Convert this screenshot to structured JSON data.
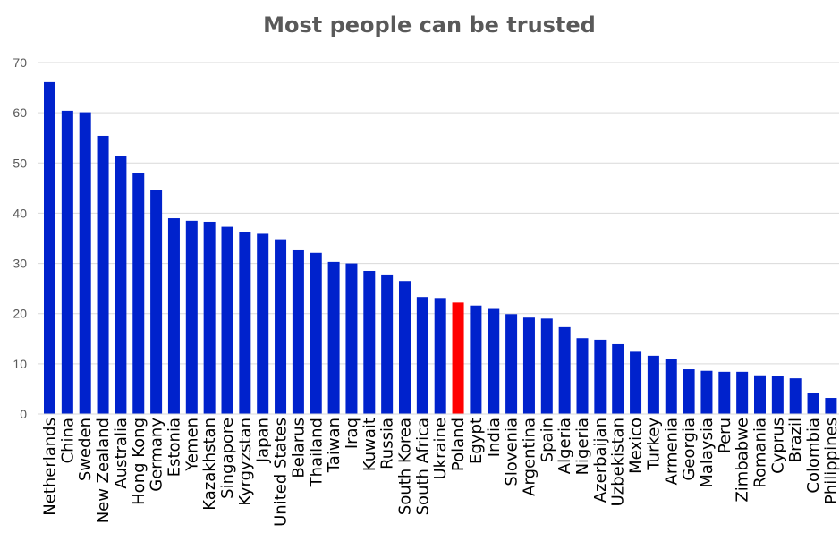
{
  "chart_data": {
    "type": "bar",
    "title": "Most people can be trusted",
    "xlabel": "",
    "ylabel": "",
    "ylim": [
      0,
      70
    ],
    "yticks": [
      0,
      10,
      20,
      30,
      40,
      50,
      60,
      70
    ],
    "grid": true,
    "legend": "none",
    "default_color": "#0022CC",
    "highlight_color": "#FF0000",
    "highlight_category": "Poland",
    "categories": [
      "Netherlands",
      "China",
      "Sweden",
      "New Zealand",
      "Australia",
      "Hong Kong",
      "Germany",
      "Estonia",
      "Yemen",
      "Kazakhstan",
      "Singapore",
      "Kyrgyzstan",
      "Japan",
      "United States",
      "Belarus",
      "Thailand",
      "Taiwan",
      "Iraq",
      "Kuwait",
      "Russia",
      "South Korea",
      "South Africa",
      "Ukraine",
      "Poland",
      "Egypt",
      "India",
      "Slovenia",
      "Argentina",
      "Spain",
      "Algeria",
      "Nigeria",
      "Azerbaijan",
      "Uzbekistan",
      "Mexico",
      "Turkey",
      "Armenia",
      "Georgia",
      "Malaysia",
      "Peru",
      "Zimbabwe",
      "Romania",
      "Cyprus",
      "Brazil",
      "Colombia",
      "Philippines"
    ],
    "values": [
      66.1,
      60.4,
      60.1,
      55.4,
      51.3,
      48.0,
      44.6,
      39.0,
      38.5,
      38.3,
      37.3,
      36.3,
      35.9,
      34.8,
      32.6,
      32.1,
      30.3,
      30.0,
      28.5,
      27.8,
      26.5,
      23.3,
      23.1,
      22.2,
      21.6,
      21.1,
      19.9,
      19.2,
      19.0,
      17.3,
      15.1,
      14.8,
      13.9,
      12.4,
      11.6,
      10.9,
      8.9,
      8.6,
      8.4,
      8.4,
      7.7,
      7.6,
      7.1,
      4.1,
      3.2
    ]
  }
}
